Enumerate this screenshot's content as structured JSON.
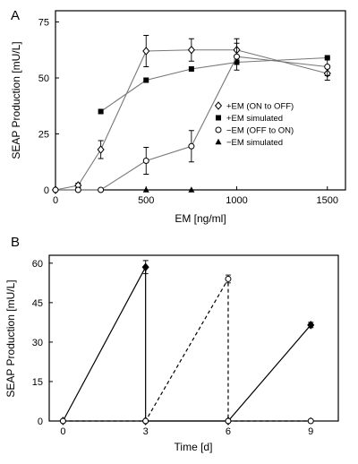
{
  "chart_data": [
    {
      "panel_label": "A",
      "type": "line",
      "xlabel": "EM [ng/ml]",
      "ylabel": "SEAP Production  [mU/L]",
      "xlim": [
        0,
        1600
      ],
      "ylim": [
        0,
        80
      ],
      "xticks": [
        0,
        500,
        1000,
        1500
      ],
      "yticks": [
        0,
        25,
        50,
        75
      ],
      "legend_position": "right",
      "series": [
        {
          "name": "+EM (ON to OFF)",
          "marker": "open-diamond",
          "connected": true,
          "x": [
            0,
            125,
            250,
            500,
            750,
            1000,
            1500
          ],
          "y": [
            0,
            2,
            18,
            62,
            62.5,
            62.5,
            52
          ],
          "err": [
            0,
            1,
            4,
            7,
            5,
            5,
            3
          ]
        },
        {
          "name": "+EM simulated",
          "marker": "filled-square",
          "connected": true,
          "x": [
            250,
            500,
            750,
            1000,
            1500
          ],
          "y": [
            35,
            49,
            54,
            57,
            59
          ],
          "err": [
            0,
            0,
            0,
            0,
            0
          ]
        },
        {
          "name": "−EM (OFF to ON)",
          "marker": "open-circle",
          "connected": true,
          "x": [
            0,
            125,
            250,
            500,
            750,
            1000,
            1500
          ],
          "y": [
            0,
            0,
            0,
            13,
            19.5,
            59.5,
            55
          ],
          "err": [
            0,
            0,
            0,
            6,
            7,
            6,
            4
          ]
        },
        {
          "name": "−EM simulated",
          "marker": "filled-triangle",
          "connected": false,
          "x": [
            500,
            750
          ],
          "y": [
            0,
            0
          ],
          "err": [
            0,
            0
          ]
        }
      ]
    },
    {
      "panel_label": "B",
      "type": "line",
      "xlabel": "Time [d]",
      "ylabel": "SEAP Production  [mU/L]",
      "xlim": [
        -0.5,
        10
      ],
      "ylim": [
        0,
        63
      ],
      "xticks": [
        0,
        3,
        6,
        9
      ],
      "yticks": [
        0,
        15,
        30,
        45,
        60
      ],
      "series": [
        {
          "marker": "filled-diamond",
          "style": "solid",
          "x": [
            0,
            3,
            3,
            3,
            6,
            6,
            9
          ],
          "y": [
            0,
            58.5,
            0,
            0,
            0,
            0,
            36.5
          ],
          "err": [
            0,
            2.5,
            0,
            0,
            0,
            0,
            1
          ]
        },
        {
          "marker": "open-circle",
          "style": "dashed",
          "x": [
            0,
            3,
            6,
            6,
            9
          ],
          "y": [
            0,
            0,
            54,
            0,
            0
          ],
          "err": [
            0,
            0,
            1.5,
            0,
            0
          ]
        }
      ]
    }
  ]
}
